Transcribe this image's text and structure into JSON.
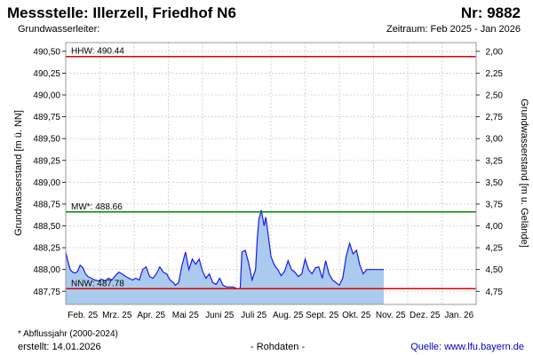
{
  "header": {
    "title_left": "Messstelle: Illerzell, Friedhof N6",
    "title_right": "Nr: 9882",
    "subtitle_left": "Grundwasserleiter:",
    "subtitle_right": "Zeitraum: Feb 2025 - Jan 2026"
  },
  "footer": {
    "note": "* Abflussjahr (2000-2024)",
    "created": "erstellt:  14.01.2026",
    "raw": "- Rohdaten -",
    "source": "Quelle: www.lfu.bayern.de"
  },
  "colors": {
    "area_fill": "#aacbee",
    "line": "#1a1aee",
    "extreme_line": "#dd0000",
    "mean_line": "#008800",
    "grid": "#cccccc"
  },
  "chart_data": {
    "type": "area",
    "ylabel_left": "Grundwasserstand [m ü. NN]",
    "ylabel_right": "Grundwasserstand [m u. Gelände]",
    "ylim": [
      487.6,
      490.6
    ],
    "y_ticks": [
      "490,50",
      "490,25",
      "490,00",
      "489,75",
      "489,50",
      "489,25",
      "489,00",
      "488,75",
      "488,50",
      "488,25",
      "488,00",
      "487,75"
    ],
    "y_tick_values": [
      490.5,
      490.25,
      490.0,
      489.75,
      489.5,
      489.25,
      489.0,
      488.75,
      488.5,
      488.25,
      488.0,
      487.75
    ],
    "y2_ticks": [
      "2,00",
      "2,25",
      "2,50",
      "2,75",
      "3,00",
      "3,25",
      "3,50",
      "3,75",
      "4,00",
      "4,25",
      "4,50",
      "4,75"
    ],
    "x_ticks": [
      "Feb. 25",
      "Mrz. 25",
      "Apr. 25",
      "Mai 25",
      "Juni 25",
      "Juli 25",
      "Aug. 25",
      "Sept. 25",
      "Okt. 25",
      "Nov. 25",
      "Dez. 25",
      "Jan. 26"
    ],
    "reference_lines": [
      {
        "label": "HHW: 490.44",
        "value": 490.44,
        "color": "#dd0000"
      },
      {
        "label": "MW*: 488.66",
        "value": 488.66,
        "color": "#008800"
      },
      {
        "label": "NNW: 487.78",
        "value": 487.78,
        "color": "#dd0000"
      }
    ],
    "grid": true,
    "series": [
      {
        "x_month_fraction": [
          0,
          0.06,
          0.13,
          0.2,
          0.28,
          0.35,
          0.42,
          0.5,
          0.58,
          0.65,
          0.75,
          0.85,
          0.95,
          1.05,
          1.15,
          1.25,
          1.35,
          1.45,
          1.55,
          1.65,
          1.75,
          1.85,
          1.95,
          2.05,
          2.15,
          2.25,
          2.35,
          2.45,
          2.55,
          2.65,
          2.75,
          2.85,
          2.95,
          3.05,
          3.15,
          3.2,
          3.3,
          3.4,
          3.5,
          3.6,
          3.7,
          3.8,
          3.9,
          4.0,
          4.1,
          4.2,
          4.3,
          4.4,
          4.5,
          4.6,
          4.7,
          4.8,
          4.9,
          5.0,
          5.1,
          5.15,
          5.25,
          5.35,
          5.45,
          5.55,
          5.6,
          5.65,
          5.72,
          5.8,
          5.85,
          5.92,
          6.0,
          6.1,
          6.2,
          6.3,
          6.4,
          6.5,
          6.6,
          6.7,
          6.8,
          6.9,
          7.0,
          7.1,
          7.2,
          7.3,
          7.4,
          7.5,
          7.6,
          7.7,
          7.8,
          7.9,
          8.0,
          8.1,
          8.2,
          8.3,
          8.4,
          8.5,
          8.6,
          8.7,
          8.8,
          8.9,
          9.0,
          9.1,
          9.2,
          9.3
        ],
        "values": [
          488.2,
          488.1,
          488.0,
          487.97,
          487.96,
          487.98,
          488.05,
          488.02,
          487.95,
          487.92,
          487.9,
          487.88,
          487.87,
          487.89,
          487.87,
          487.9,
          487.88,
          487.93,
          487.97,
          487.95,
          487.92,
          487.9,
          487.88,
          487.9,
          487.88,
          488.0,
          488.03,
          487.92,
          487.9,
          487.95,
          488.03,
          487.97,
          487.95,
          487.88,
          487.85,
          487.82,
          487.85,
          488.05,
          488.2,
          488.0,
          488.12,
          488.06,
          488.12,
          487.98,
          487.9,
          487.95,
          487.85,
          487.83,
          487.9,
          487.82,
          487.8,
          487.8,
          487.8,
          487.78,
          487.78,
          488.2,
          488.22,
          488.07,
          487.88,
          488.0,
          488.35,
          488.58,
          488.68,
          488.5,
          488.6,
          488.4,
          488.15,
          488.05,
          488.0,
          487.93,
          487.98,
          488.1,
          488.0,
          487.97,
          487.92,
          487.95,
          488.12,
          488.0,
          487.95,
          488.02,
          488.03,
          487.9,
          488.1,
          487.95,
          487.88,
          487.85,
          487.82,
          487.9,
          488.15,
          488.3,
          488.18,
          488.22,
          488.05,
          487.95,
          488.0,
          488.0,
          488.0,
          488.0,
          488.0,
          488.0
        ]
      }
    ]
  }
}
